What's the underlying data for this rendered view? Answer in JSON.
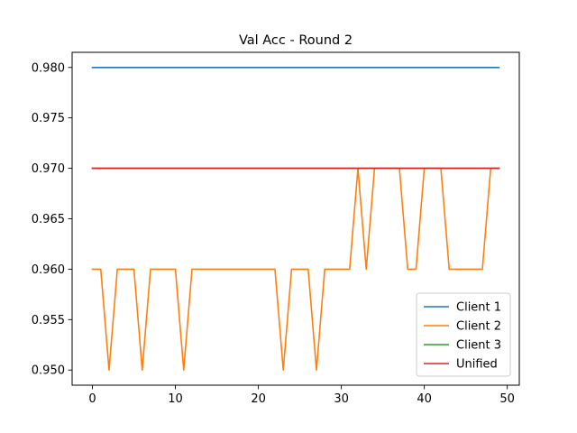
{
  "chart_data": {
    "type": "line",
    "title": "Val Acc - Round 2",
    "xlabel": "",
    "ylabel": "",
    "xlim": [
      -2.45,
      51.45
    ],
    "ylim": [
      0.9485,
      0.9815
    ],
    "xticks": [
      0,
      10,
      20,
      30,
      40,
      50
    ],
    "xtick_labels": [
      "0",
      "10",
      "20",
      "30",
      "40",
      "50"
    ],
    "yticks": [
      0.95,
      0.955,
      0.96,
      0.965,
      0.97,
      0.975,
      0.98
    ],
    "ytick_labels": [
      "0.950",
      "0.955",
      "0.960",
      "0.965",
      "0.970",
      "0.975",
      "0.980"
    ],
    "grid": false,
    "legend_position": "lower-right",
    "x": [
      0,
      1,
      2,
      3,
      4,
      5,
      6,
      7,
      8,
      9,
      10,
      11,
      12,
      13,
      14,
      15,
      16,
      17,
      18,
      19,
      20,
      21,
      22,
      23,
      24,
      25,
      26,
      27,
      28,
      29,
      30,
      31,
      32,
      33,
      34,
      35,
      36,
      37,
      38,
      39,
      40,
      41,
      42,
      43,
      44,
      45,
      46,
      47,
      48,
      49
    ],
    "series": [
      {
        "name": "Client 1",
        "color": "#1f77b4",
        "values": [
          0.98,
          0.98,
          0.98,
          0.98,
          0.98,
          0.98,
          0.98,
          0.98,
          0.98,
          0.98,
          0.98,
          0.98,
          0.98,
          0.98,
          0.98,
          0.98,
          0.98,
          0.98,
          0.98,
          0.98,
          0.98,
          0.98,
          0.98,
          0.98,
          0.98,
          0.98,
          0.98,
          0.98,
          0.98,
          0.98,
          0.98,
          0.98,
          0.98,
          0.98,
          0.98,
          0.98,
          0.98,
          0.98,
          0.98,
          0.98,
          0.98,
          0.98,
          0.98,
          0.98,
          0.98,
          0.98,
          0.98,
          0.98,
          0.98,
          0.98
        ]
      },
      {
        "name": "Client 2",
        "color": "#ff7f0e",
        "values": [
          0.96,
          0.96,
          0.95,
          0.96,
          0.96,
          0.96,
          0.95,
          0.96,
          0.96,
          0.96,
          0.96,
          0.95,
          0.96,
          0.96,
          0.96,
          0.96,
          0.96,
          0.96,
          0.96,
          0.96,
          0.96,
          0.96,
          0.96,
          0.95,
          0.96,
          0.96,
          0.96,
          0.95,
          0.96,
          0.96,
          0.96,
          0.96,
          0.97,
          0.96,
          0.97,
          0.97,
          0.97,
          0.97,
          0.96,
          0.96,
          0.97,
          0.97,
          0.97,
          0.96,
          0.96,
          0.96,
          0.96,
          0.96,
          0.97,
          0.97
        ]
      },
      {
        "name": "Client 3",
        "color": "#2ca02c",
        "values": [
          0.97,
          0.97,
          0.97,
          0.97,
          0.97,
          0.97,
          0.97,
          0.97,
          0.97,
          0.97,
          0.97,
          0.97,
          0.97,
          0.97,
          0.97,
          0.97,
          0.97,
          0.97,
          0.97,
          0.97,
          0.97,
          0.97,
          0.97,
          0.97,
          0.97,
          0.97,
          0.97,
          0.97,
          0.97,
          0.97,
          0.97,
          0.97,
          0.97,
          0.97,
          0.97,
          0.97,
          0.97,
          0.97,
          0.97,
          0.97,
          0.97,
          0.97,
          0.97,
          0.97,
          0.97,
          0.97,
          0.97,
          0.97,
          0.97,
          0.97
        ]
      },
      {
        "name": "Unified",
        "color": "#d62728",
        "values": [
          0.97,
          0.97,
          0.97,
          0.97,
          0.97,
          0.97,
          0.97,
          0.97,
          0.97,
          0.97,
          0.97,
          0.97,
          0.97,
          0.97,
          0.97,
          0.97,
          0.97,
          0.97,
          0.97,
          0.97,
          0.97,
          0.97,
          0.97,
          0.97,
          0.97,
          0.97,
          0.97,
          0.97,
          0.97,
          0.97,
          0.97,
          0.97,
          0.97,
          0.97,
          0.97,
          0.97,
          0.97,
          0.97,
          0.97,
          0.97,
          0.97,
          0.97,
          0.97,
          0.97,
          0.97,
          0.97,
          0.97,
          0.97,
          0.97,
          0.97
        ]
      }
    ]
  }
}
